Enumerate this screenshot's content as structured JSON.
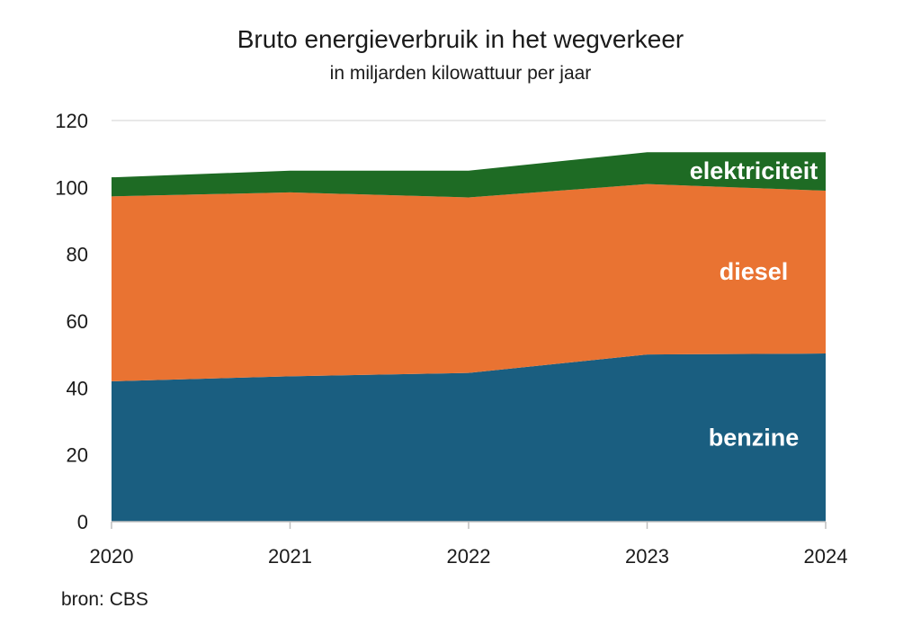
{
  "chart_data": {
    "type": "area",
    "stacked": true,
    "title": "Bruto energieverbruik in het wegverkeer",
    "subtitle": "in miljarden kilowattuur per jaar",
    "source": "bron: CBS",
    "x": [
      "2020",
      "2021",
      "2022",
      "2023",
      "2024"
    ],
    "ylim": [
      0,
      120
    ],
    "yticks": [
      0,
      20,
      40,
      60,
      80,
      100,
      120
    ],
    "grid": "horizontal",
    "legend": "none (labels inside areas)",
    "series": [
      {
        "name": "benzine",
        "values": [
          42,
          43.5,
          44.5,
          50,
          50.3
        ],
        "color": "#1a5e80"
      },
      {
        "name": "diesel",
        "values": [
          55.3,
          55,
          52.5,
          51,
          48.7
        ],
        "color": "#e97332"
      },
      {
        "name": "elektriciteit",
        "values": [
          5.7,
          6.5,
          8,
          9.5,
          11.5
        ],
        "color": "#1e6b24"
      }
    ]
  }
}
